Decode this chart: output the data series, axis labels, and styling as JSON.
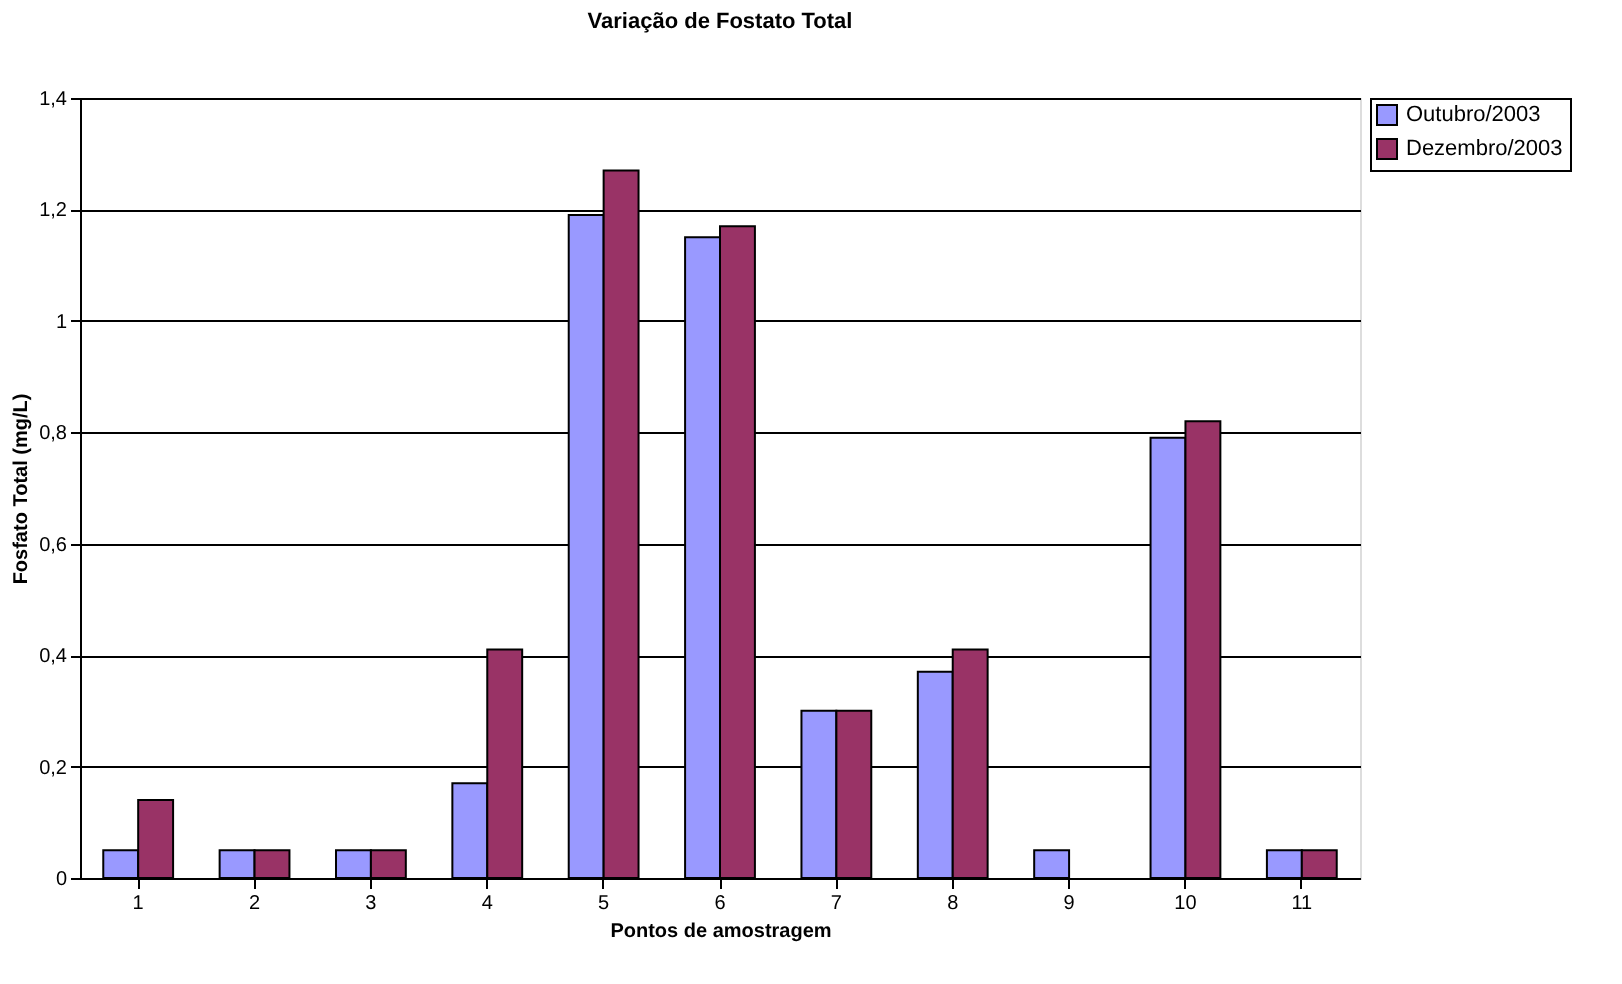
{
  "chart_data": {
    "type": "bar",
    "title": "Variação de Fostato Total",
    "xlabel": "Pontos de amostragem",
    "ylabel": "Fosfato Total (mg/L)",
    "categories": [
      "1",
      "2",
      "3",
      "4",
      "5",
      "6",
      "7",
      "8",
      "9",
      "10",
      "11"
    ],
    "series": [
      {
        "name": "Outubro/2003",
        "color": "#9999ff",
        "values": [
          0.05,
          0.05,
          0.05,
          0.17,
          1.19,
          1.15,
          0.3,
          0.37,
          0.05,
          0.79,
          0.05
        ]
      },
      {
        "name": "Dezembro/2003",
        "color": "#993366",
        "values": [
          0.14,
          0.05,
          0.05,
          0.41,
          1.27,
          1.17,
          0.3,
          0.41,
          null,
          0.82,
          0.05
        ]
      }
    ],
    "ylim": [
      0,
      1.4
    ],
    "yticks": [
      0,
      {
        "value": 0.2,
        "label": "0,2"
      },
      {
        "value": 0.4,
        "label": "0,4"
      },
      {
        "value": 0.6,
        "label": "0,6"
      },
      {
        "value": 0.8,
        "label": "0,8"
      },
      1,
      {
        "value": 1.2,
        "label": "1,2"
      },
      {
        "value": 1.4,
        "label": "1,4"
      }
    ],
    "grid": "y",
    "legend": "right"
  }
}
